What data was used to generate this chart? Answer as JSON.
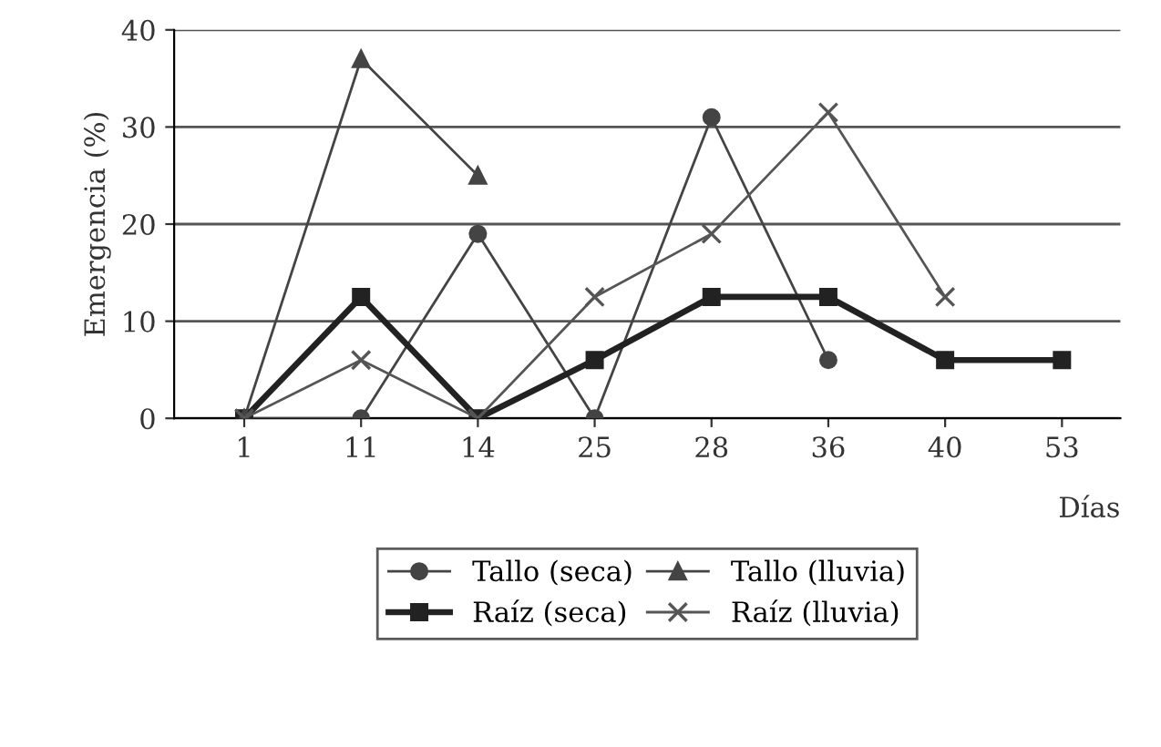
{
  "chart_data": {
    "type": "line",
    "ylabel": "Emergencia (%)",
    "xlabel": "Días",
    "categories": [
      "1",
      "11",
      "14",
      "25",
      "28",
      "36",
      "40",
      "53"
    ],
    "ylim": [
      0,
      40
    ],
    "yticks": [
      0,
      10,
      20,
      30,
      40
    ],
    "grid": "y",
    "legend": "bottom",
    "series": [
      {
        "name": "Tallo (seca)",
        "color": "#444444",
        "marker": "circle",
        "values": [
          0,
          0,
          19,
          0,
          31,
          6,
          null,
          null
        ]
      },
      {
        "name": "Raíz (seca)",
        "color": "#222222",
        "marker": "square",
        "values": [
          0,
          12.5,
          0,
          6,
          12.5,
          12.5,
          6,
          6
        ]
      },
      {
        "name": "Tallo (lluvia)",
        "color": "#444444",
        "marker": "triangle",
        "values": [
          0,
          37,
          25,
          null,
          null,
          null,
          null,
          null
        ]
      },
      {
        "name": "Raíz (lluvia)",
        "color": "#555555",
        "marker": "cross",
        "values": [
          0,
          6,
          0,
          12.5,
          19,
          31.5,
          12.5,
          null
        ]
      }
    ]
  }
}
